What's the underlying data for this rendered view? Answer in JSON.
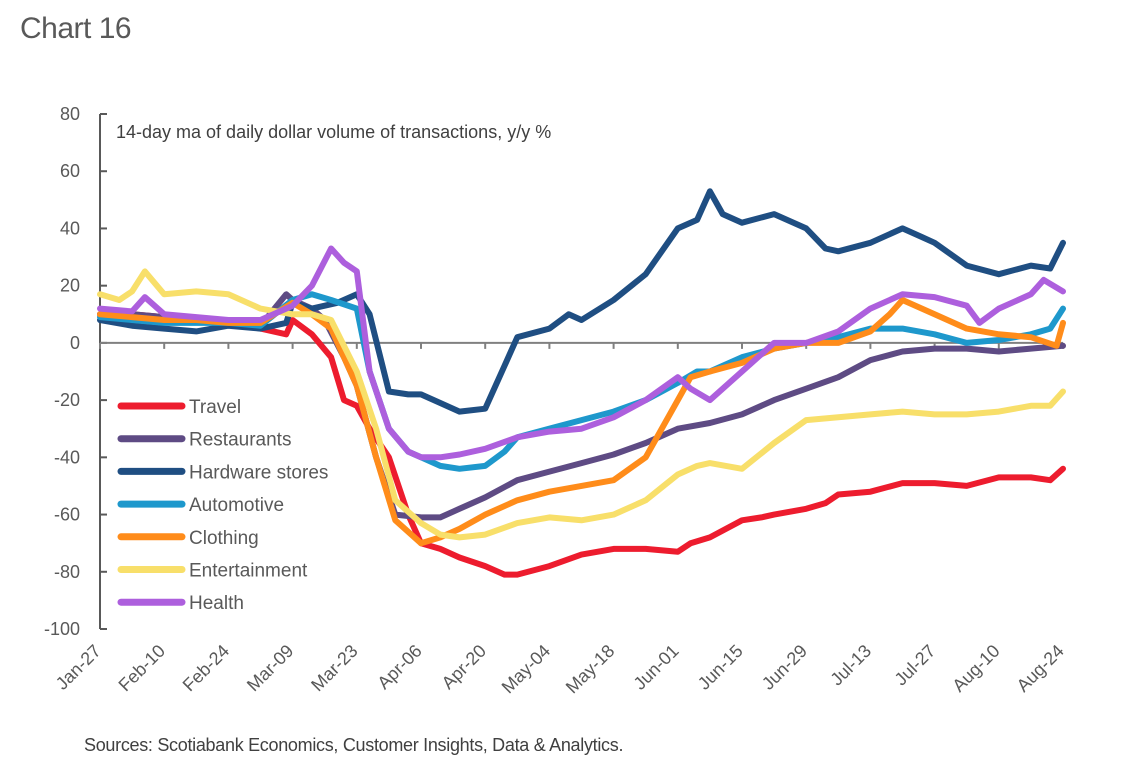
{
  "title": "Chart 16",
  "source": "Sources: Scotiabank Economics, Customer Insights, Data & Analytics.",
  "chart_data": {
    "type": "line",
    "title": "Chart 16",
    "subtitle": "14-day ma of daily dollar volume of transactions, y/y %",
    "xlabel": "",
    "ylabel": "",
    "ylim": [
      -100,
      80
    ],
    "yticks": [
      80,
      60,
      40,
      20,
      0,
      -20,
      -40,
      -60,
      -80,
      -100
    ],
    "xtick_labels": [
      "Jan-27",
      "Feb-10",
      "Feb-24",
      "Mar-09",
      "Mar-23",
      "Apr-06",
      "Apr-20",
      "May-04",
      "May-18",
      "Jun-01",
      "Jun-15",
      "Jun-29",
      "Jul-13",
      "Jul-27",
      "Aug-10",
      "Aug-24"
    ],
    "grid": false,
    "legend_position": "left-center",
    "x_note": "x values are weeks since Jan-27 (0 = Jan-27, 15 = Aug-24)",
    "series": [
      {
        "name": "Travel",
        "color": "#ED1C2E",
        "x": [
          0,
          0.5,
          1,
          1.5,
          2,
          2.5,
          2.9,
          3,
          3.3,
          3.6,
          3.8,
          4,
          4.2,
          4.5,
          4.8,
          5,
          5.3,
          5.6,
          6,
          6.3,
          6.5,
          7,
          7.5,
          8,
          8.5,
          9,
          9.2,
          9.5,
          10,
          10.3,
          10.5,
          11,
          11.3,
          11.5,
          12,
          12.5,
          13,
          13.5,
          14,
          14.5,
          14.8,
          15
        ],
        "y": [
          10,
          10,
          9,
          8,
          7,
          5,
          3,
          8,
          3,
          -5,
          -20,
          -22,
          -30,
          -40,
          -60,
          -70,
          -72,
          -75,
          -78,
          -81,
          -81,
          -78,
          -74,
          -72,
          -72,
          -73,
          -70,
          -68,
          -62,
          -61,
          -60,
          -58,
          -56,
          -53,
          -52,
          -49,
          -49,
          -50,
          -47,
          -47,
          -48,
          -44
        ]
      },
      {
        "name": "Restaurants",
        "color": "#5E4B84",
        "x": [
          0,
          0.5,
          1,
          1.5,
          2,
          2.5,
          2.9,
          3,
          3.3,
          3.5,
          3.8,
          4,
          4.3,
          4.6,
          5,
          5.3,
          5.6,
          6,
          6.5,
          7,
          7.5,
          8,
          8.5,
          9,
          9.5,
          10,
          10.5,
          11,
          11.5,
          12,
          12.5,
          13,
          13.5,
          14,
          14.5,
          15
        ],
        "y": [
          10,
          10,
          9,
          8,
          7,
          6,
          17,
          15,
          12,
          8,
          -5,
          -15,
          -40,
          -60,
          -61,
          -61,
          -58,
          -54,
          -48,
          -45,
          -42,
          -39,
          -35,
          -30,
          -28,
          -25,
          -20,
          -16,
          -12,
          -6,
          -3,
          -2,
          -2,
          -3,
          -2,
          -1
        ]
      },
      {
        "name": "Hardware stores",
        "color": "#1F4E82",
        "x": [
          0,
          0.5,
          1,
          1.5,
          2,
          2.5,
          2.9,
          3,
          3.3,
          3.7,
          4,
          4.2,
          4.5,
          4.8,
          5,
          5.3,
          5.6,
          6,
          6.3,
          6.5,
          7,
          7.3,
          7.5,
          8,
          8.5,
          9,
          9.3,
          9.5,
          9.7,
          10,
          10.5,
          11,
          11.3,
          11.5,
          12,
          12.5,
          12.8,
          13,
          13.5,
          14,
          14.5,
          14.8,
          15
        ],
        "y": [
          8,
          6,
          5,
          4,
          6,
          5,
          7,
          14,
          12,
          14,
          17,
          10,
          -17,
          -18,
          -18,
          -21,
          -24,
          -23,
          -8,
          2,
          5,
          10,
          8,
          15,
          24,
          40,
          43,
          53,
          45,
          42,
          45,
          40,
          33,
          32,
          35,
          40,
          37,
          35,
          27,
          24,
          27,
          26,
          35
        ]
      },
      {
        "name": "Automotive",
        "color": "#1E98CC",
        "x": [
          0,
          0.5,
          1,
          1.5,
          2,
          2.5,
          3,
          3.3,
          3.6,
          4,
          4.2,
          4.5,
          4.8,
          5,
          5.3,
          5.6,
          6,
          6.3,
          6.5,
          7,
          7.5,
          8,
          8.5,
          9,
          9.3,
          9.5,
          10,
          10.5,
          11,
          11.5,
          12,
          12.5,
          13,
          13.5,
          14,
          14.5,
          14.8,
          15
        ],
        "y": [
          9,
          8,
          7,
          7,
          7,
          6,
          15,
          17,
          15,
          12,
          -10,
          -30,
          -38,
          -40,
          -43,
          -44,
          -43,
          -38,
          -33,
          -30,
          -27,
          -24,
          -20,
          -14,
          -10,
          -10,
          -5,
          -2,
          0,
          2,
          5,
          5,
          3,
          0,
          1,
          3,
          5,
          12
        ]
      },
      {
        "name": "Clothing",
        "color": "#FF8C1A",
        "x": [
          0,
          0.5,
          1,
          1.5,
          2,
          2.5,
          3,
          3.3,
          3.6,
          4,
          4.3,
          4.6,
          5,
          5.3,
          5.6,
          6,
          6.5,
          7,
          7.5,
          8,
          8.5,
          9,
          9.2,
          9.5,
          10,
          10.5,
          11,
          11.5,
          12,
          12.3,
          12.5,
          13,
          13.5,
          14,
          14.5,
          14.9,
          15
        ],
        "y": [
          10,
          9,
          8,
          8,
          7,
          7,
          14,
          10,
          5,
          -15,
          -40,
          -62,
          -70,
          -68,
          -65,
          -60,
          -55,
          -52,
          -50,
          -48,
          -40,
          -20,
          -12,
          -10,
          -7,
          -2,
          0,
          0,
          4,
          10,
          15,
          10,
          5,
          3,
          2,
          -1,
          7
        ]
      },
      {
        "name": "Entertainment",
        "color": "#F8DF6A",
        "x": [
          0,
          0.3,
          0.5,
          0.7,
          1,
          1.5,
          2,
          2.5,
          3,
          3.3,
          3.6,
          4,
          4.3,
          4.6,
          5,
          5.3,
          5.6,
          6,
          6.5,
          7,
          7.5,
          8,
          8.5,
          9,
          9.3,
          9.5,
          10,
          10.5,
          11,
          11.5,
          12,
          12.5,
          13,
          13.5,
          14,
          14.5,
          14.8,
          15
        ],
        "y": [
          17,
          15,
          18,
          25,
          17,
          18,
          17,
          12,
          10,
          10,
          8,
          -10,
          -30,
          -55,
          -63,
          -67,
          -68,
          -67,
          -63,
          -61,
          -62,
          -60,
          -55,
          -46,
          -43,
          -42,
          -44,
          -35,
          -27,
          -26,
          -25,
          -24,
          -25,
          -25,
          -24,
          -22,
          -22,
          -17
        ]
      },
      {
        "name": "Health",
        "color": "#AD5FDD",
        "x": [
          0,
          0.5,
          0.7,
          1,
          1.5,
          2,
          2.5,
          3,
          3.3,
          3.6,
          3.8,
          4,
          4.2,
          4.5,
          4.8,
          5,
          5.3,
          5.6,
          6,
          6.5,
          7,
          7.5,
          8,
          8.5,
          9,
          9.2,
          9.5,
          10,
          10.5,
          11,
          11.5,
          12,
          12.5,
          13,
          13.5,
          13.7,
          14,
          14.5,
          14.7,
          15
        ],
        "y": [
          12,
          11,
          16,
          10,
          9,
          8,
          8,
          13,
          20,
          33,
          28,
          25,
          -10,
          -30,
          -38,
          -40,
          -40,
          -39,
          -37,
          -33,
          -31,
          -30,
          -26,
          -20,
          -12,
          -16,
          -20,
          -10,
          0,
          0,
          4,
          12,
          17,
          16,
          13,
          7,
          12,
          17,
          22,
          18
        ]
      }
    ]
  }
}
